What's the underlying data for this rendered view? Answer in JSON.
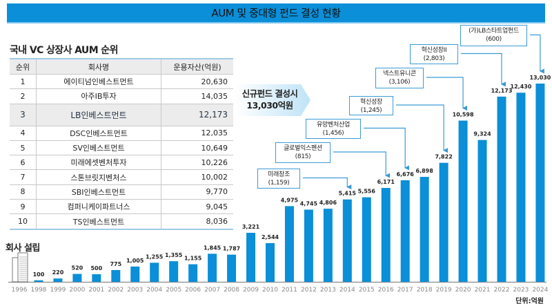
{
  "title": "AUM 및 중대형 펀드 결성 현황",
  "table": {
    "title": "국내 VC 상장사 AUM 순위",
    "headers": [
      "순위",
      "회사명",
      "운용자산(억원)"
    ],
    "highlight_rank": "3",
    "rows": [
      [
        "1",
        "에이티넘인베스트먼트",
        "20,630"
      ],
      [
        "2",
        "아주IB투자",
        "14,035"
      ],
      [
        "3",
        "LB인베스트먼트",
        "12,173"
      ],
      [
        "4",
        "DSC인베스트먼트",
        "12,035"
      ],
      [
        "5",
        "SV인베스트먼트",
        "10,649"
      ],
      [
        "6",
        "미래에셋벤처투자",
        "10,226"
      ],
      [
        "7",
        "스톤브릿지벤처스",
        "10,002"
      ],
      [
        "8",
        "SBI인베스트먼트",
        "9,770"
      ],
      [
        "9",
        "컴퍼니케이파트너스",
        "9,045"
      ],
      [
        "10",
        "TS인베스트먼트",
        "8,036"
      ]
    ]
  },
  "founding": {
    "label": "회사 설립",
    "icon": "building-icon",
    "year": "1996"
  },
  "callout": {
    "line1": "신규펀드 결성시",
    "line2": "13,030억원"
  },
  "unit": "단위:억원",
  "colors": {
    "bar": "#0a8fd8",
    "title_bar": "#0b8fd9",
    "connector": "#3a9ad6"
  },
  "chart_data": {
    "type": "bar",
    "categories": [
      "1996",
      "1998",
      "1999",
      "2000",
      "2001",
      "2002",
      "2003",
      "2004",
      "2005",
      "2006",
      "2007",
      "2008",
      "2009",
      "2010",
      "2011",
      "2012",
      "2013",
      "2014",
      "2015",
      "2016",
      "2017",
      "2018",
      "2019",
      "2020",
      "2021",
      "2022",
      "2023",
      "2024"
    ],
    "values": [
      null,
      100,
      220,
      520,
      500,
      775,
      1005,
      1255,
      1355,
      1155,
      1845,
      1787,
      3221,
      2544,
      4975,
      4745,
      4806,
      5415,
      5556,
      6171,
      6676,
      6898,
      7822,
      10598,
      9324,
      12173,
      12430,
      13030
    ],
    "value_labels": [
      "",
      "100",
      "220",
      "520",
      "500",
      "775",
      "1,005",
      "1,255",
      "1,355",
      "1,155",
      "1,845",
      "1,787",
      "3,221",
      "2,544",
      "4,975",
      "4,745",
      "4,806",
      "5,415",
      "5,556",
      "6,171",
      "6,676",
      "6,898",
      "7,822",
      "10,598",
      "9,324",
      "12,173",
      "12,430",
      "13,030"
    ],
    "ylabel": "",
    "unit": "억원",
    "annotations": [
      {
        "name": "미래창조",
        "amount": "(1,159)",
        "year": "2014"
      },
      {
        "name": "글로벌익스펜션",
        "amount": "(815)",
        "year": "2016"
      },
      {
        "name": "유망벤처산업",
        "amount": "(1,456)",
        "year": "2017"
      },
      {
        "name": "혁신성장",
        "amount": "(1,245)",
        "year": "2019"
      },
      {
        "name": "넥스트유니콘",
        "amount": "(3,106)",
        "year": "2020"
      },
      {
        "name": "혁신성장II",
        "amount": "(2,803)",
        "year": "2022"
      },
      {
        "name": "(가)LB스타트업펀드",
        "amount": "(600)",
        "year": "2024"
      }
    ]
  }
}
